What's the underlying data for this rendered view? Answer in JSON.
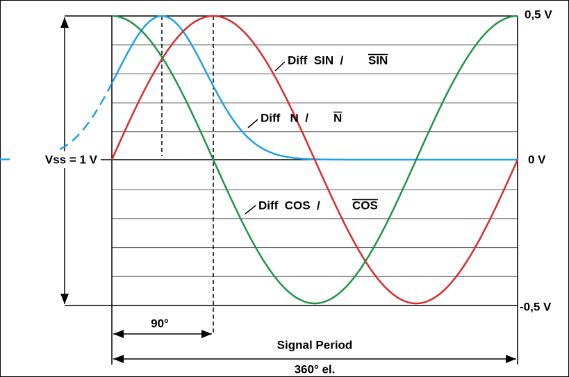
{
  "axis_labels": {
    "top": "0,5 V",
    "zero": "0 V",
    "bottom": "-0,5 V",
    "amplitude": "Vss = 1 V"
  },
  "dimensions": {
    "quarter": "90°",
    "period_title": "Signal Period",
    "period": "360° el."
  },
  "curves": [
    {
      "prefix": "Diff  SIN  /",
      "inverse": "SIN"
    },
    {
      "prefix": "Diff   N  /",
      "inverse": "N"
    },
    {
      "prefix": "Diff  COS  /",
      "inverse": "COS"
    }
  ]
}
